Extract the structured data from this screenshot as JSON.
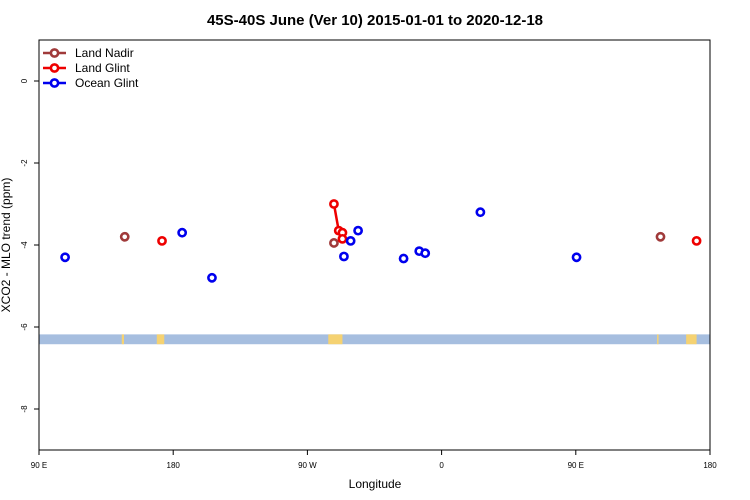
{
  "chart_data": {
    "type": "scatter",
    "title": "45S-40S June (Ver 10)   2015-01-01 to 2020-12-18",
    "xlabel": "Longitude",
    "ylabel": "XCO2 - MLO trend (ppm)",
    "xlim": [
      90,
      540
    ],
    "ylim": [
      -9,
      1
    ],
    "x_ticks": [
      {
        "value": 90,
        "label": "90 E"
      },
      {
        "value": 180,
        "label": "180"
      },
      {
        "value": 270,
        "label": "90 W"
      },
      {
        "value": 360,
        "label": "0"
      },
      {
        "value": 450,
        "label": "90 E"
      },
      {
        "value": 540,
        "label": "180"
      }
    ],
    "y_ticks": [
      {
        "value": 0,
        "label": "0"
      },
      {
        "value": -2,
        "label": "-2"
      },
      {
        "value": -4,
        "label": "-4"
      },
      {
        "value": -6,
        "label": "-6"
      },
      {
        "value": -8,
        "label": "-8"
      }
    ],
    "grid": false,
    "legend_position": "top-left",
    "series": [
      {
        "name": "Land Nadir",
        "color": "#a03a3a",
        "connect": false,
        "points": [
          [
            147.5,
            -3.8
          ],
          [
            287.8,
            -3.95
          ],
          [
            506.8,
            -3.8
          ]
        ]
      },
      {
        "name": "Land Glint",
        "color": "#ee0000",
        "connect": true,
        "points": [
          [
            172.5,
            -3.9
          ],
          [
            287.8,
            -3.0
          ],
          [
            291.0,
            -3.65
          ],
          [
            293.5,
            -3.7
          ],
          [
            293.5,
            -3.85
          ],
          [
            531.0,
            -3.9
          ]
        ]
      },
      {
        "name": "Ocean Glint",
        "color": "#0000ee",
        "connect": false,
        "points": [
          [
            107.5,
            -4.3
          ],
          [
            186.0,
            -3.7
          ],
          [
            206.0,
            -4.8
          ],
          [
            294.5,
            -4.28
          ],
          [
            299.0,
            -3.9
          ],
          [
            304.0,
            -3.65
          ],
          [
            334.5,
            -4.33
          ],
          [
            345.0,
            -4.15
          ],
          [
            349.0,
            -4.2
          ],
          [
            386.0,
            -3.2
          ],
          [
            450.5,
            -4.3
          ]
        ]
      }
    ],
    "map_strip": {
      "y_range": [
        -6.42,
        -6.18
      ],
      "ocean_color": "#a6bedf",
      "land_color": "#f5d272",
      "land_spans": [
        [
          145.5,
          147.0
        ],
        [
          169.0,
          174.0
        ],
        [
          284.0,
          293.5
        ],
        [
          504.5,
          505.5
        ],
        [
          524.0,
          531.0
        ]
      ]
    }
  }
}
